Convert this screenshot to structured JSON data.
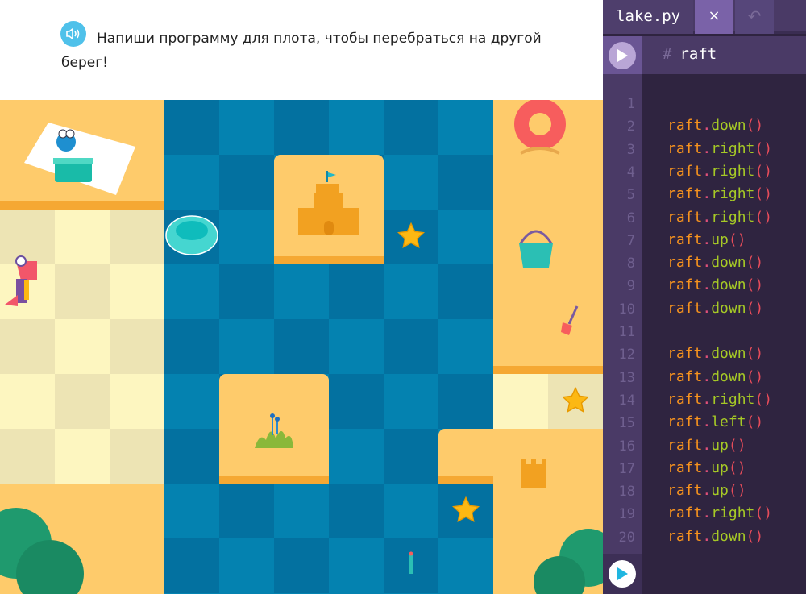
{
  "task": {
    "text": "Напиши программу для плота, чтобы перебраться на другой берег!",
    "speaker_icon": "speaker-icon"
  },
  "editor": {
    "file_tab": "lake.py",
    "close_label": "×",
    "undo_label": "↶",
    "comment_hash": "#",
    "comment_text": "raft",
    "object": "raft",
    "lines": [
      "",
      "down",
      "right",
      "right",
      "right",
      "right",
      "up",
      "down",
      "down",
      "down",
      "",
      "down",
      "down",
      "right",
      "left",
      "up",
      "up",
      "up",
      "right",
      "down"
    ],
    "colors": {
      "object": "#f7931e",
      "method": "#a6c926",
      "paren": "#e74c5a",
      "background": "#2f2440",
      "accent": "#7a62a8"
    }
  },
  "board": {
    "stars": 3,
    "colors": {
      "water": "#0482b0",
      "sand": "#fecb6b",
      "path": "#fdf6c0"
    }
  }
}
